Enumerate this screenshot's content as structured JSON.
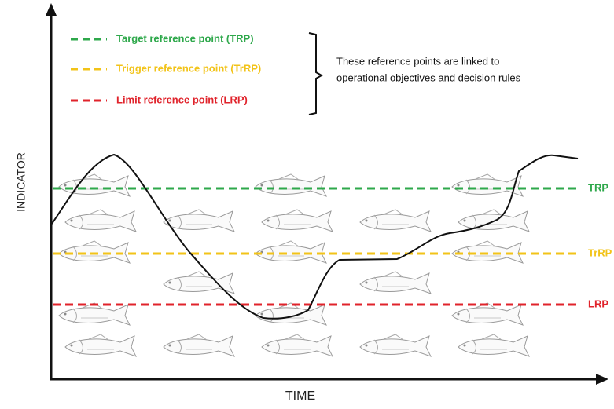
{
  "levels": [
    {
      "legend": "Target reference point (TRP)",
      "label": "TRP",
      "color": "#2ea84b"
    },
    {
      "legend": "Trigger reference point (TrRP)",
      "label": "TrRP",
      "color": "#f2c318"
    },
    {
      "legend": "Limit reference point (LRP)",
      "label": "LRP",
      "color": "#e0232b"
    }
  ],
  "note": [
    "These reference points are linked to",
    "operational objectives and decision rules"
  ],
  "axes": {
    "y": "INDICATOR",
    "x": "TIME"
  }
}
